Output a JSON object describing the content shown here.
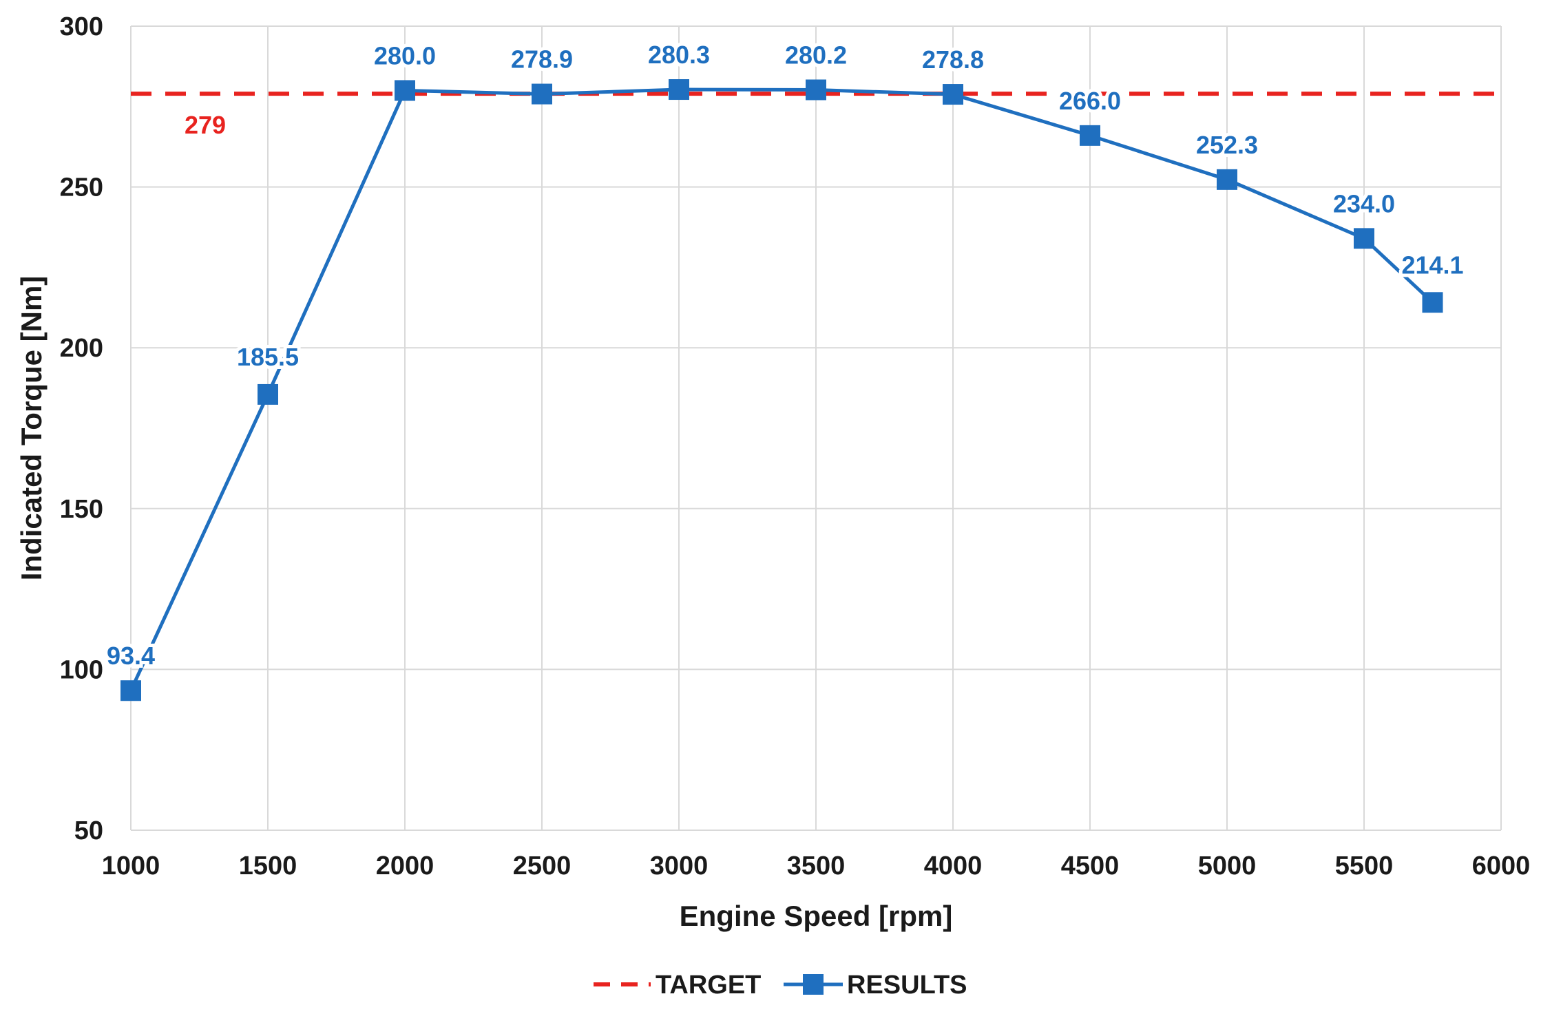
{
  "chart_data": {
    "type": "line",
    "title": "",
    "xlabel": "Engine Speed [rpm]",
    "ylabel": "Indicated Torque [Nm]",
    "xlim": [
      1000,
      6000
    ],
    "ylim": [
      50,
      300
    ],
    "xticks": [
      1000,
      1500,
      2000,
      2500,
      3000,
      3500,
      4000,
      4500,
      5000,
      5500,
      6000
    ],
    "yticks": [
      50,
      100,
      150,
      200,
      250,
      300
    ],
    "grid": true,
    "legend_position": "bottom-center",
    "series": [
      {
        "name": "TARGET",
        "style": "dashed",
        "color": "#e8231f",
        "x": [
          1000,
          6000
        ],
        "values": [
          279,
          279
        ],
        "label": "279"
      },
      {
        "name": "RESULTS",
        "style": "solid-square-markers",
        "color": "#1f6fbf",
        "x": [
          1000,
          1500,
          2000,
          2500,
          3000,
          3500,
          4000,
          4500,
          5000,
          5500,
          5750
        ],
        "values": [
          93.4,
          185.5,
          280.0,
          278.9,
          280.3,
          280.2,
          278.8,
          266.0,
          252.3,
          234.0,
          214.1
        ],
        "labels": [
          "93.4",
          "185.5",
          "280.0",
          "278.9",
          "280.3",
          "280.2",
          "278.8",
          "266.0",
          "252.3",
          "234.0",
          "214.1"
        ]
      }
    ]
  }
}
